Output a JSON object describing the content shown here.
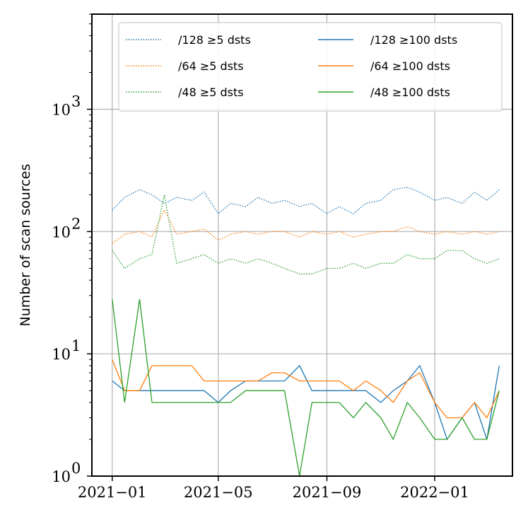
{
  "chart_data": {
    "type": "line",
    "ylabel": "Number of scan sources",
    "xlabel": "",
    "title": "",
    "yscale": "log",
    "ylim": [
      1,
      6000
    ],
    "xlim": [
      "2020-12-09",
      "2022-03-30"
    ],
    "grid": true,
    "legend_placement": "top",
    "legend_columns": 2,
    "x_ticks": [
      "2021-01-01",
      "2021-05-01",
      "2021-09-01",
      "2022-01-01"
    ],
    "x_tick_labels": [
      "2021−01",
      "2021−05",
      "2021−09",
      "2022−01"
    ],
    "y_ticks": [
      1,
      10,
      100,
      1000
    ],
    "y_tick_labels": [
      "10",
      "10",
      "10",
      "10"
    ],
    "y_tick_exponents": [
      "0",
      "1",
      "2",
      "3"
    ],
    "colors": {
      "blue": "#1f77b4",
      "orange": "#ff7f0e",
      "green": "#2ca02c"
    },
    "series": [
      {
        "name": "/128 ≥5 dsts",
        "color": "#1f77b4",
        "style": "dotted",
        "x": [
          "2021-01-01",
          "2021-01-15",
          "2021-02-01",
          "2021-02-15",
          "2021-03-01",
          "2021-03-15",
          "2021-04-01",
          "2021-04-15",
          "2021-05-01",
          "2021-05-15",
          "2021-06-01",
          "2021-06-15",
          "2021-07-01",
          "2021-07-15",
          "2021-08-01",
          "2021-08-15",
          "2021-09-01",
          "2021-09-15",
          "2021-10-01",
          "2021-10-15",
          "2021-11-01",
          "2021-11-15",
          "2021-12-01",
          "2021-12-15",
          "2022-01-01",
          "2022-01-15",
          "2022-02-01",
          "2022-02-15",
          "2022-03-01",
          "2022-03-15"
        ],
        "values": [
          150,
          190,
          220,
          200,
          170,
          190,
          180,
          210,
          140,
          170,
          160,
          190,
          170,
          180,
          160,
          170,
          140,
          160,
          140,
          170,
          180,
          220,
          230,
          210,
          180,
          190,
          170,
          210,
          180,
          220
        ]
      },
      {
        "name": "/64 ≥5 dsts",
        "color": "#ff7f0e",
        "style": "dotted",
        "x": [
          "2021-01-01",
          "2021-01-15",
          "2021-02-01",
          "2021-02-15",
          "2021-03-01",
          "2021-03-15",
          "2021-04-01",
          "2021-04-15",
          "2021-05-01",
          "2021-05-15",
          "2021-06-01",
          "2021-06-15",
          "2021-07-01",
          "2021-07-15",
          "2021-08-01",
          "2021-08-15",
          "2021-09-01",
          "2021-09-15",
          "2021-10-01",
          "2021-10-15",
          "2021-11-01",
          "2021-11-15",
          "2021-12-01",
          "2021-12-15",
          "2022-01-01",
          "2022-01-15",
          "2022-02-01",
          "2022-02-15",
          "2022-03-01",
          "2022-03-15"
        ],
        "values": [
          80,
          95,
          100,
          90,
          150,
          95,
          100,
          105,
          85,
          95,
          100,
          95,
          100,
          100,
          90,
          100,
          95,
          100,
          90,
          95,
          100,
          100,
          110,
          100,
          95,
          100,
          95,
          100,
          95,
          100
        ]
      },
      {
        "name": "/48 ≥5 dsts",
        "color": "#2ca02c",
        "style": "dotted",
        "x": [
          "2021-01-01",
          "2021-01-15",
          "2021-02-01",
          "2021-02-15",
          "2021-03-01",
          "2021-03-15",
          "2021-04-01",
          "2021-04-15",
          "2021-05-01",
          "2021-05-15",
          "2021-06-01",
          "2021-06-15",
          "2021-07-01",
          "2021-07-15",
          "2021-08-01",
          "2021-08-15",
          "2021-09-01",
          "2021-09-15",
          "2021-10-01",
          "2021-10-15",
          "2021-11-01",
          "2021-11-15",
          "2021-12-01",
          "2021-12-15",
          "2022-01-01",
          "2022-01-15",
          "2022-02-01",
          "2022-02-15",
          "2022-03-01",
          "2022-03-15"
        ],
        "values": [
          70,
          50,
          60,
          65,
          200,
          55,
          60,
          65,
          55,
          60,
          55,
          60,
          55,
          50,
          45,
          45,
          50,
          50,
          55,
          50,
          55,
          55,
          65,
          60,
          60,
          70,
          70,
          60,
          55,
          60
        ]
      },
      {
        "name": "/128 ≥100 dsts",
        "color": "#1f77b4",
        "style": "solid",
        "x": [
          "2021-01-01",
          "2021-01-15",
          "2021-02-01",
          "2021-02-15",
          "2021-03-01",
          "2021-03-15",
          "2021-04-01",
          "2021-04-15",
          "2021-05-01",
          "2021-05-15",
          "2021-06-01",
          "2021-06-15",
          "2021-07-01",
          "2021-07-15",
          "2021-08-01",
          "2021-08-15",
          "2021-09-01",
          "2021-09-15",
          "2021-10-01",
          "2021-10-15",
          "2021-11-01",
          "2021-11-15",
          "2021-12-01",
          "2021-12-15",
          "2022-01-01",
          "2022-01-15",
          "2022-02-01",
          "2022-02-15",
          "2022-03-01",
          "2022-03-15"
        ],
        "values": [
          6,
          5,
          5,
          5,
          5,
          5,
          5,
          5,
          4,
          5,
          6,
          6,
          6,
          6,
          8,
          5,
          5,
          5,
          5,
          5,
          4,
          5,
          6,
          8,
          4,
          2,
          3,
          4,
          2,
          8
        ]
      },
      {
        "name": "/64 ≥100 dsts",
        "color": "#ff7f0e",
        "style": "solid",
        "x": [
          "2021-01-01",
          "2021-01-15",
          "2021-02-01",
          "2021-02-15",
          "2021-03-01",
          "2021-03-15",
          "2021-04-01",
          "2021-04-15",
          "2021-05-01",
          "2021-05-15",
          "2021-06-01",
          "2021-06-15",
          "2021-07-01",
          "2021-07-15",
          "2021-08-01",
          "2021-08-15",
          "2021-09-01",
          "2021-09-15",
          "2021-10-01",
          "2021-10-15",
          "2021-11-01",
          "2021-11-15",
          "2021-12-01",
          "2021-12-15",
          "2022-01-01",
          "2022-01-15",
          "2022-02-01",
          "2022-02-15",
          "2022-03-01",
          "2022-03-15"
        ],
        "values": [
          9,
          5,
          5,
          8,
          8,
          8,
          8,
          6,
          6,
          6,
          6,
          6,
          7,
          7,
          6,
          6,
          6,
          6,
          5,
          6,
          5,
          4,
          6,
          7,
          4,
          3,
          3,
          4,
          3,
          5
        ]
      },
      {
        "name": "/48 ≥100 dsts",
        "color": "#2ca02c",
        "style": "solid",
        "x": [
          "2021-01-01",
          "2021-01-15",
          "2021-02-01",
          "2021-02-15",
          "2021-03-01",
          "2021-03-15",
          "2021-04-01",
          "2021-04-15",
          "2021-05-01",
          "2021-05-15",
          "2021-06-01",
          "2021-06-15",
          "2021-07-01",
          "2021-07-15",
          "2021-08-01",
          "2021-08-15",
          "2021-09-01",
          "2021-09-15",
          "2021-10-01",
          "2021-10-15",
          "2021-11-01",
          "2021-11-15",
          "2021-12-01",
          "2021-12-15",
          "2022-01-01",
          "2022-01-15",
          "2022-02-01",
          "2022-02-15",
          "2022-03-01",
          "2022-03-15"
        ],
        "values": [
          28,
          4,
          28,
          4,
          4,
          4,
          4,
          4,
          4,
          4,
          5,
          5,
          5,
          5,
          1,
          4,
          4,
          4,
          3,
          4,
          3,
          2,
          4,
          3,
          2,
          2,
          3,
          2,
          2,
          5
        ]
      }
    ]
  }
}
